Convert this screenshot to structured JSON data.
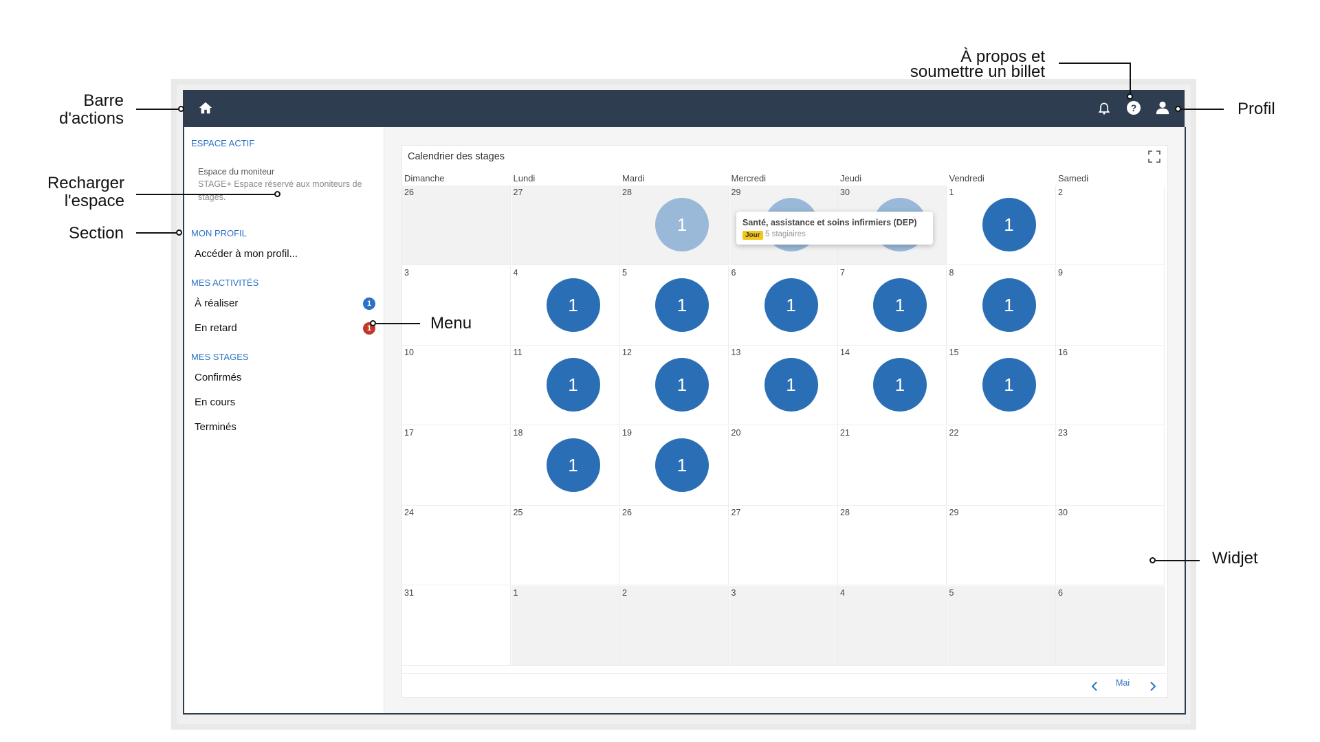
{
  "callouts": {
    "barre": "Barre\nd'actions",
    "apropos": "À propos et\nsoumettre un billet",
    "profil": "Profil",
    "recharger": "Recharger\nl'espace",
    "section": "Section",
    "menu": "Menu",
    "widget": "Widjet"
  },
  "topbar": {
    "icons": [
      "home-icon",
      "bell-icon",
      "help-icon",
      "user-icon"
    ],
    "color": "#2e3e50"
  },
  "sidebar": {
    "active_space": {
      "title": "ESPACE ACTIF",
      "name": "Espace du moniteur",
      "description": "STAGE+ Espace réservé aux moniteurs de stages."
    },
    "profile": {
      "title": "MON PROFIL",
      "link": "Accéder à mon profil..."
    },
    "activities": {
      "title": "MES ACTIVITÉS",
      "items": [
        {
          "label": "À réaliser",
          "count": "1",
          "color": "#2b72c6"
        },
        {
          "label": "En retard",
          "count": "1",
          "color": "#c0392b"
        }
      ]
    },
    "stages": {
      "title": "MES STAGES",
      "items": [
        {
          "label": "Confirmés"
        },
        {
          "label": "En cours"
        },
        {
          "label": "Terminés"
        }
      ]
    }
  },
  "calendar": {
    "title": "Calendrier des stages",
    "days": [
      "Dimanche",
      "Lundi",
      "Mardi",
      "Mercredi",
      "Jeudi",
      "Vendredi",
      "Samedi"
    ],
    "weeks": [
      [
        {
          "d": "26",
          "o": true,
          "c": ""
        },
        {
          "d": "27",
          "o": true,
          "c": ""
        },
        {
          "d": "28",
          "o": true,
          "c": "1",
          "pale": true
        },
        {
          "d": "29",
          "o": true,
          "c": "1",
          "pale": true
        },
        {
          "d": "30",
          "o": true,
          "c": "1",
          "pale": true
        },
        {
          "d": "1",
          "o": false,
          "c": "1"
        },
        {
          "d": "2",
          "o": false,
          "c": ""
        }
      ],
      [
        {
          "d": "3",
          "c": ""
        },
        {
          "d": "4",
          "c": "1"
        },
        {
          "d": "5",
          "c": "1"
        },
        {
          "d": "6",
          "c": "1"
        },
        {
          "d": "7",
          "c": "1"
        },
        {
          "d": "8",
          "c": "1"
        },
        {
          "d": "9",
          "c": ""
        }
      ],
      [
        {
          "d": "10",
          "c": ""
        },
        {
          "d": "11",
          "c": "1"
        },
        {
          "d": "12",
          "c": "1"
        },
        {
          "d": "13",
          "c": "1"
        },
        {
          "d": "14",
          "c": "1"
        },
        {
          "d": "15",
          "c": "1"
        },
        {
          "d": "16",
          "c": ""
        }
      ],
      [
        {
          "d": "17",
          "c": ""
        },
        {
          "d": "18",
          "c": "1"
        },
        {
          "d": "19",
          "c": "1"
        },
        {
          "d": "20",
          "c": ""
        },
        {
          "d": "21",
          "c": ""
        },
        {
          "d": "22",
          "c": ""
        },
        {
          "d": "23",
          "c": ""
        }
      ],
      [
        {
          "d": "24",
          "c": ""
        },
        {
          "d": "25",
          "c": ""
        },
        {
          "d": "26",
          "c": ""
        },
        {
          "d": "27",
          "c": ""
        },
        {
          "d": "28",
          "c": ""
        },
        {
          "d": "29",
          "c": ""
        },
        {
          "d": "30",
          "c": ""
        }
      ],
      [
        {
          "d": "31",
          "c": ""
        },
        {
          "d": "1",
          "o": true,
          "c": ""
        },
        {
          "d": "2",
          "o": true,
          "c": ""
        },
        {
          "d": "3",
          "o": true,
          "c": ""
        },
        {
          "d": "4",
          "o": true,
          "c": ""
        },
        {
          "d": "5",
          "o": true,
          "c": ""
        },
        {
          "d": "6",
          "o": true,
          "c": ""
        }
      ]
    ],
    "tooltip": {
      "title": "Santé, assistance et soins infirmiers (DEP)",
      "badge": "Jour",
      "subtitle": "5 stagiaires"
    },
    "month": "Mai",
    "bubble_color": "#2a6fb6"
  }
}
